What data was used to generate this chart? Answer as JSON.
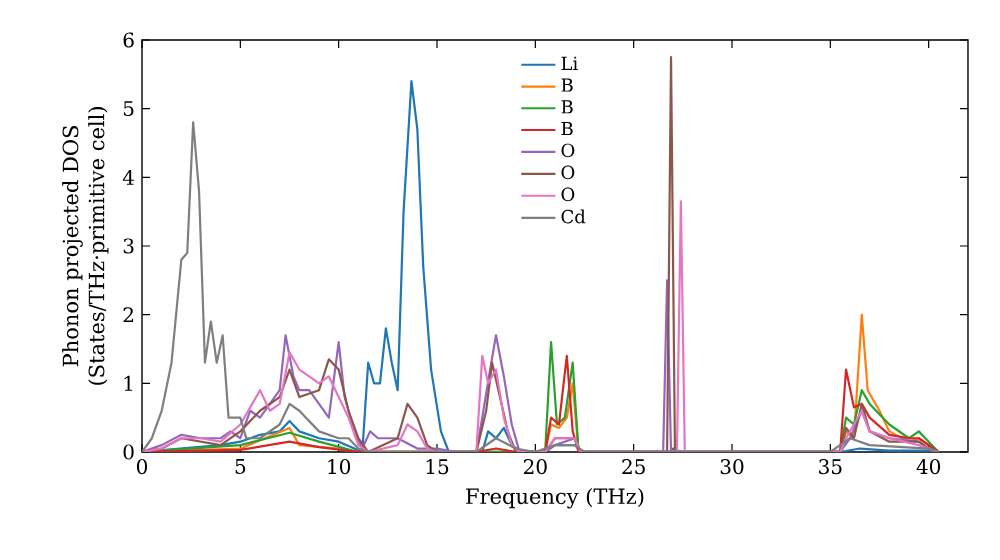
{
  "chart_data": {
    "type": "line",
    "xlabel": "Frequency (THz)",
    "ylabel": "Phonon projected DOS\n(States/THz·primitive cell)",
    "xlim": [
      0,
      42
    ],
    "ylim": [
      0,
      6
    ],
    "xticks": [
      0,
      5,
      10,
      15,
      20,
      25,
      30,
      35,
      40
    ],
    "yticks": [
      0,
      1,
      2,
      3,
      4,
      5,
      6
    ],
    "legend": "top",
    "series": [
      {
        "name": "Li",
        "color": "#1f77b4",
        "x": [
          0,
          2,
          4,
          5,
          6,
          7,
          7.5,
          8,
          9,
          10,
          10.8,
          11.2,
          11.5,
          11.8,
          12.1,
          12.4,
          12.7,
          13.0,
          13.3,
          13.7,
          14.0,
          14.3,
          14.7,
          15.2,
          15.6,
          17.3,
          17.6,
          18.0,
          18.4,
          18.8,
          19.3,
          20.5,
          21,
          22,
          22.4,
          26.8,
          27,
          27.4,
          35.5,
          36.5,
          38,
          40,
          40.5
        ],
        "values": [
          0,
          0.05,
          0.1,
          0.15,
          0.25,
          0.3,
          0.45,
          0.3,
          0.2,
          0.15,
          0.05,
          0,
          1.3,
          1.0,
          1.0,
          1.8,
          1.3,
          0.9,
          3.5,
          5.4,
          4.7,
          2.7,
          1.2,
          0.3,
          0,
          0,
          0.3,
          0.2,
          0.35,
          0.1,
          0,
          0,
          0.1,
          0.1,
          0,
          0,
          0.05,
          0,
          0,
          0.05,
          0.02,
          0.02,
          0
        ]
      },
      {
        "name": "B",
        "color": "#ff7f0e",
        "x": [
          0,
          5,
          7.5,
          8,
          10,
          11,
          20.5,
          20.8,
          21.2,
          21.6,
          21.9,
          22.2,
          35.5,
          35.8,
          36.2,
          36.6,
          36.9,
          37.5,
          38,
          39,
          39.5,
          40,
          40.5
        ],
        "values": [
          0,
          0.05,
          0.35,
          0.1,
          0.05,
          0,
          0,
          0.4,
          0.35,
          0.5,
          1.0,
          0,
          0,
          0.3,
          0.2,
          2.0,
          0.9,
          0.6,
          0.3,
          0.15,
          0.2,
          0.1,
          0
        ]
      },
      {
        "name": "B",
        "color": "#2ca02c",
        "x": [
          0,
          5,
          7.5,
          9,
          11,
          20.5,
          20.8,
          21.1,
          21.5,
          21.9,
          22.2,
          35.5,
          35.8,
          36.2,
          36.6,
          37,
          38,
          39,
          39.5,
          40,
          40.5
        ],
        "values": [
          0,
          0.1,
          0.28,
          0.15,
          0,
          0,
          1.6,
          0.4,
          0.5,
          1.3,
          0,
          0,
          0.5,
          0.4,
          0.9,
          0.7,
          0.4,
          0.2,
          0.3,
          0.15,
          0
        ]
      },
      {
        "name": "B",
        "color": "#d62728",
        "x": [
          0,
          5,
          7.5,
          9,
          11,
          17,
          18,
          19,
          20.5,
          20.8,
          21.2,
          21.6,
          21.9,
          22.2,
          35.5,
          35.8,
          36.2,
          36.6,
          37,
          38,
          39,
          39.5,
          40,
          40.5
        ],
        "values": [
          0,
          0.03,
          0.15,
          0.07,
          0,
          0,
          0.05,
          0,
          0,
          0.5,
          0.4,
          1.4,
          0.3,
          0,
          0,
          1.2,
          0.65,
          0.7,
          0.5,
          0.25,
          0.2,
          0.2,
          0.1,
          0
        ]
      },
      {
        "name": "O",
        "color": "#9467bd",
        "x": [
          0,
          1,
          2,
          3,
          4,
          4.5,
          5,
          5.5,
          6,
          7,
          7.3,
          7.7,
          8,
          8.5,
          9,
          9.5,
          10,
          10.3,
          10.8,
          11.2,
          11.6,
          12,
          13,
          14,
          15,
          16,
          17,
          17.3,
          17.7,
          18,
          18.4,
          18.8,
          19.2,
          20.5,
          21,
          21.5,
          22,
          22.3,
          26.5,
          26.7,
          26.9,
          35.5,
          36,
          36.6,
          37,
          38,
          39.5,
          40,
          40.5
        ],
        "values": [
          0,
          0.1,
          0.25,
          0.2,
          0.2,
          0.3,
          0.2,
          0.6,
          0.5,
          0.9,
          1.7,
          1.1,
          0.9,
          0.9,
          0.7,
          0.5,
          1.6,
          0.8,
          0.3,
          0.05,
          0.3,
          0.2,
          0.2,
          0.05,
          0.05,
          0,
          0,
          0.5,
          1.2,
          1.7,
          1.1,
          0.4,
          0,
          0,
          0.1,
          0.15,
          0.2,
          0,
          0,
          2.5,
          0,
          0,
          0.2,
          0.6,
          0.3,
          0.2,
          0.15,
          0.05,
          0
        ]
      },
      {
        "name": "O",
        "color": "#8c564b",
        "x": [
          0,
          1,
          2,
          3,
          4,
          5,
          6,
          7,
          7.5,
          8,
          8.5,
          9,
          9.5,
          10,
          10.5,
          11,
          11.5,
          13,
          13.5,
          14,
          14.5,
          15,
          17,
          17.5,
          17.8,
          18.2,
          18.6,
          19,
          20.5,
          21,
          22,
          22.3,
          26.7,
          26.9,
          27.1,
          35.5,
          35.8,
          36.2,
          36.6,
          37,
          38,
          39.5,
          40,
          40.5
        ],
        "values": [
          0,
          0.05,
          0.2,
          0.15,
          0.1,
          0.3,
          0.6,
          0.8,
          1.2,
          0.8,
          0.85,
          0.9,
          1.35,
          1.2,
          0.6,
          0.2,
          0,
          0.2,
          0.7,
          0.5,
          0.1,
          0,
          0,
          0.6,
          1.3,
          0.8,
          0.3,
          0,
          0,
          0.2,
          0.2,
          0,
          0,
          5.75,
          0,
          0,
          0.35,
          0.2,
          0.7,
          0.3,
          0.15,
          0.15,
          0.05,
          0
        ]
      },
      {
        "name": "O",
        "color": "#e377c2",
        "x": [
          0,
          1,
          2,
          3,
          4,
          5,
          6,
          6.5,
          7,
          7.5,
          8,
          8.5,
          9,
          9.5,
          10,
          10.5,
          11,
          11.5,
          13,
          13.5,
          14,
          14.5,
          15,
          17,
          17.3,
          17.6,
          18,
          18.4,
          18.8,
          19.2,
          20.5,
          21,
          22,
          22.3,
          27.2,
          27.4,
          27.6,
          35.5,
          35.8,
          36.6,
          37,
          38,
          39.5,
          40,
          40.5
        ],
        "values": [
          0,
          0.05,
          0.2,
          0.2,
          0.15,
          0.4,
          0.9,
          0.6,
          0.7,
          1.45,
          1.2,
          1.1,
          1.0,
          1.1,
          0.8,
          0.5,
          0.1,
          0,
          0.1,
          0.4,
          0.3,
          0.05,
          0,
          0,
          1.4,
          1.0,
          1.2,
          0.5,
          0.1,
          0,
          0,
          0.2,
          0.2,
          0,
          0,
          3.65,
          0,
          0,
          0.2,
          0.6,
          0.3,
          0.2,
          0.1,
          0.05,
          0
        ]
      },
      {
        "name": "Cd",
        "color": "#7f7f7f",
        "x": [
          0,
          0.5,
          1,
          1.5,
          2,
          2.3,
          2.6,
          2.9,
          3.2,
          3.5,
          3.8,
          4.1,
          4.4,
          5,
          5.3,
          6,
          7,
          7.5,
          8,
          9,
          10,
          10.5,
          11,
          11.5,
          17,
          17.5,
          18,
          19,
          20,
          21,
          22,
          22.5,
          35,
          36,
          37,
          40,
          40.5
        ],
        "values": [
          0,
          0.2,
          0.6,
          1.3,
          2.8,
          2.9,
          4.8,
          3.8,
          1.3,
          1.9,
          1.3,
          1.7,
          0.5,
          0.5,
          0.2,
          0.2,
          0.4,
          0.7,
          0.6,
          0.3,
          0.2,
          0.2,
          0.05,
          0,
          0,
          0.1,
          0.2,
          0.05,
          0,
          0.1,
          0.1,
          0,
          0,
          0.2,
          0.1,
          0.05,
          0
        ]
      }
    ]
  }
}
